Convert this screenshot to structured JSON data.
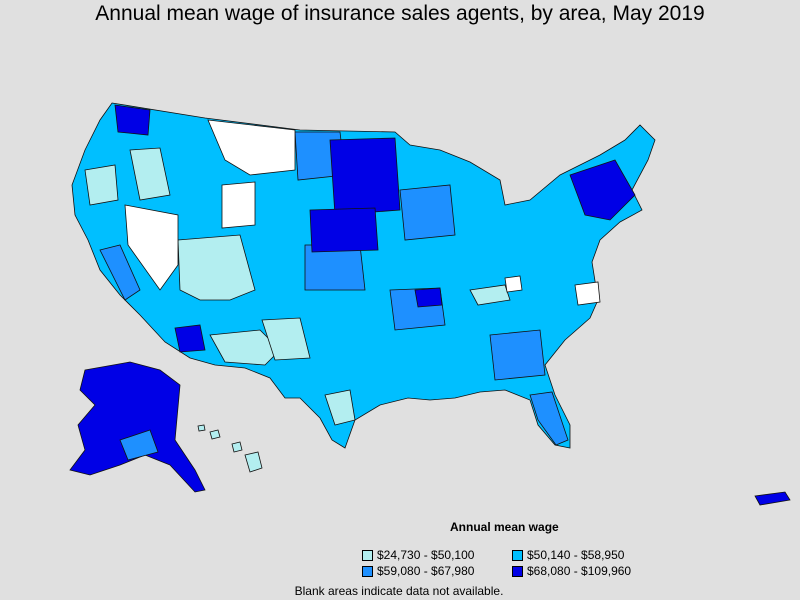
{
  "title": "Annual mean wage of insurance sales agents, by area, May 2019",
  "legend": {
    "title": "Annual mean wage",
    "items": [
      {
        "label": "$24,730 - $50,100",
        "color": "#b3eef0"
      },
      {
        "label": "$50,140 - $58,950",
        "color": "#00bfff"
      },
      {
        "label": "$59,080 - $67,980",
        "color": "#1e90ff"
      },
      {
        "label": "$68,080 - $109,960",
        "color": "#0000e6"
      }
    ]
  },
  "footnote": "Blank areas indicate data not available.",
  "colors": {
    "background": "#e0e0e0",
    "no_data": "#ffffff",
    "border": "#000000"
  }
}
